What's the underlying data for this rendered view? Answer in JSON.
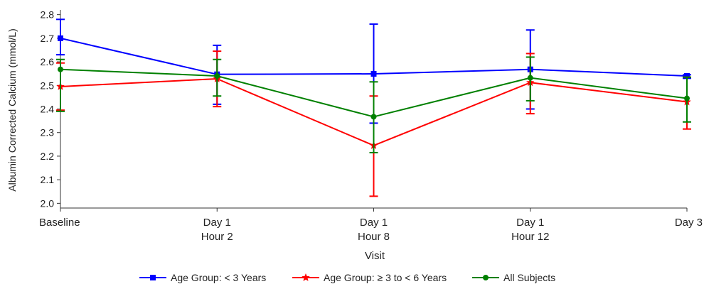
{
  "chart_data": {
    "type": "line",
    "title": "",
    "xlabel": "Visit",
    "ylabel": "Albumin Corrected Calcium (mmol/L)",
    "categories": [
      [
        "Baseline"
      ],
      [
        "Day 1",
        "Hour 2"
      ],
      [
        "Day 1",
        "Hour 8"
      ],
      [
        "Day 1",
        "Hour 12"
      ],
      [
        "Day 3"
      ]
    ],
    "ylim": [
      1.98,
      2.82
    ],
    "yticks": [
      "2.0",
      "2.1",
      "2.2",
      "2.3",
      "2.4",
      "2.5",
      "2.6",
      "2.7",
      "2.8"
    ],
    "grid": false,
    "legend_position": "bottom",
    "series": [
      {
        "name": "Age Group: < 3 Years",
        "color": "#0000ff",
        "marker": "square",
        "values": [
          2.7,
          2.547,
          2.549,
          2.568,
          2.54
        ],
        "error_low": [
          2.63,
          2.42,
          2.34,
          2.4,
          2.53
        ],
        "error_high": [
          2.78,
          2.67,
          2.76,
          2.735,
          2.545
        ]
      },
      {
        "name": "Age Group: ≥ 3 to < 6 Years",
        "color": "#ff0000",
        "marker": "star",
        "values": [
          2.495,
          2.528,
          2.245,
          2.512,
          2.43
        ],
        "error_low": [
          2.395,
          2.41,
          2.03,
          2.38,
          2.315
        ],
        "error_high": [
          2.595,
          2.645,
          2.455,
          2.635,
          2.535
        ]
      },
      {
        "name": "All Subjects",
        "color": "#008000",
        "marker": "circle",
        "values": [
          2.568,
          2.54,
          2.367,
          2.532,
          2.445
        ],
        "error_low": [
          2.39,
          2.455,
          2.215,
          2.435,
          2.345
        ],
        "error_high": [
          2.61,
          2.61,
          2.515,
          2.62,
          2.535
        ]
      }
    ]
  }
}
